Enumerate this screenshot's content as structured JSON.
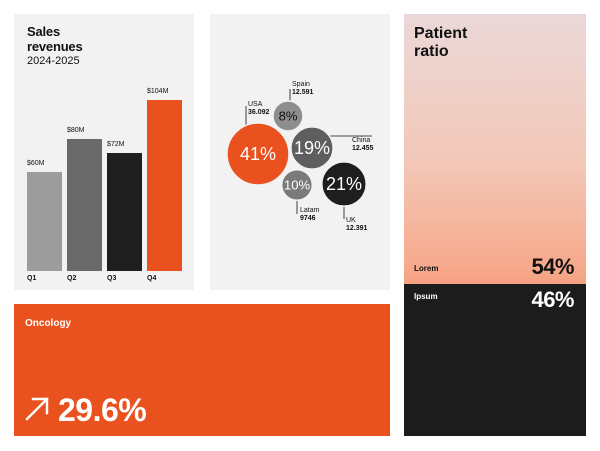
{
  "sales": {
    "title_line1": "Sales",
    "title_line2": "revenues",
    "subtitle": "2024-2025"
  },
  "chart_data": [
    {
      "type": "bar",
      "title": "Sales revenues",
      "subtitle": "2024-2025",
      "categories": [
        "Q1",
        "Q2",
        "Q3",
        "Q4"
      ],
      "values": [
        60,
        80,
        72,
        104
      ],
      "value_labels": [
        "$60M",
        "$80M",
        "$72M",
        "$104M"
      ],
      "colors": [
        "#9c9c9c",
        "#6a6a6a",
        "#1e1e1e",
        "#e9511e"
      ],
      "ylim": [
        0,
        104
      ]
    },
    {
      "type": "bubble",
      "items": [
        {
          "region": "USA",
          "value": "36.092",
          "percent": "41%",
          "share": 41,
          "color": "#e9511e"
        },
        {
          "region": "Spain",
          "value": "12.591",
          "percent": "8%",
          "share": 8,
          "color": "#8e8e8e"
        },
        {
          "region": "China",
          "value": "12.455",
          "percent": "19%",
          "share": 19,
          "color": "#5e5e5e"
        },
        {
          "region": "Latam",
          "value": "9746",
          "percent": "10%",
          "share": 10,
          "color": "#7a7a7a"
        },
        {
          "region": "UK",
          "value": "12.391",
          "percent": "21%",
          "share": 21,
          "color": "#1e1e1e"
        }
      ]
    }
  ],
  "patient": {
    "title_line1": "Patient",
    "title_line2": "ratio",
    "rows": [
      {
        "label": "Lorem",
        "value": "54%",
        "share": 54
      },
      {
        "label": "Ipsum",
        "value": "46%",
        "share": 46
      }
    ]
  },
  "oncology": {
    "label": "Oncology",
    "value": "29.6%",
    "icon": "arrow-up-right-icon"
  },
  "colors": {
    "accent": "#e9511e",
    "dark": "#1c1c1c",
    "card": "#f2f2f2"
  }
}
